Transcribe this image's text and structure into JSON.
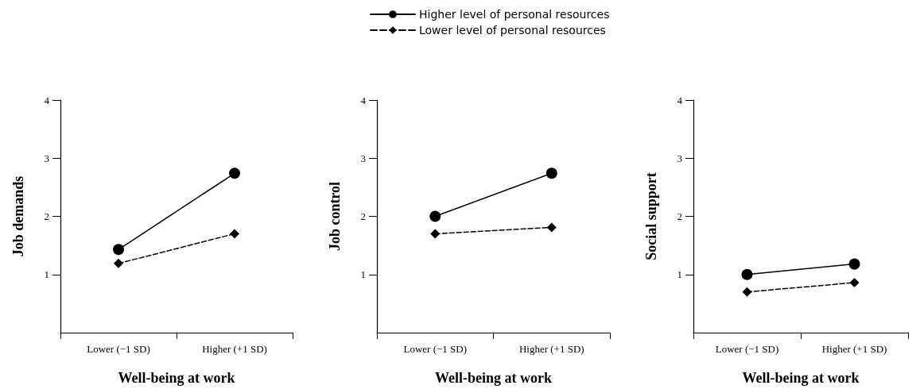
{
  "chart_data": [
    {
      "type": "line",
      "ylabel": "Job demands",
      "xlabel": "Well-being at work",
      "categories": [
        "Lower (−1 SD)",
        "Higher (+1 SD)"
      ],
      "ylim": [
        0,
        4
      ],
      "yticks": [
        1,
        2,
        3,
        4
      ],
      "grid": false,
      "series": [
        {
          "color": "#000000",
          "marker": "circle",
          "line_style": "solid",
          "values": [
            1.43,
            2.74
          ]
        },
        {
          "color": "#000000",
          "marker": "diamond",
          "line_style": "dashed",
          "values": [
            1.19,
            1.7
          ]
        }
      ]
    },
    {
      "type": "line",
      "ylabel": "Job control",
      "xlabel": "Well-being at work",
      "categories": [
        "Lower (−1 SD)",
        "Higher (+1 SD)"
      ],
      "ylim": [
        0,
        4
      ],
      "yticks": [
        1,
        2,
        3,
        4
      ],
      "grid": false,
      "legend": "top",
      "series": [
        {
          "name": "Higher level of personal resources",
          "color": "#000000",
          "marker": "circle",
          "line_style": "solid",
          "values": [
            2.0,
            2.74
          ]
        },
        {
          "name": "Lower level of personal resources",
          "color": "#000000",
          "marker": "diamond",
          "line_style": "dashed",
          "values": [
            1.7,
            1.81
          ]
        }
      ]
    },
    {
      "type": "line",
      "ylabel": "Social support",
      "xlabel": "Well-being at work",
      "categories": [
        "Lower (−1 SD)",
        "Higher (+1 SD)"
      ],
      "ylim": [
        0,
        4
      ],
      "yticks": [
        1,
        2,
        3,
        4
      ],
      "grid": false,
      "series": [
        {
          "color": "#000000",
          "marker": "circle",
          "line_style": "solid",
          "values": [
            1.0,
            1.18
          ]
        },
        {
          "color": "#000000",
          "marker": "diamond",
          "line_style": "dashed",
          "values": [
            0.7,
            0.86
          ]
        }
      ]
    }
  ]
}
